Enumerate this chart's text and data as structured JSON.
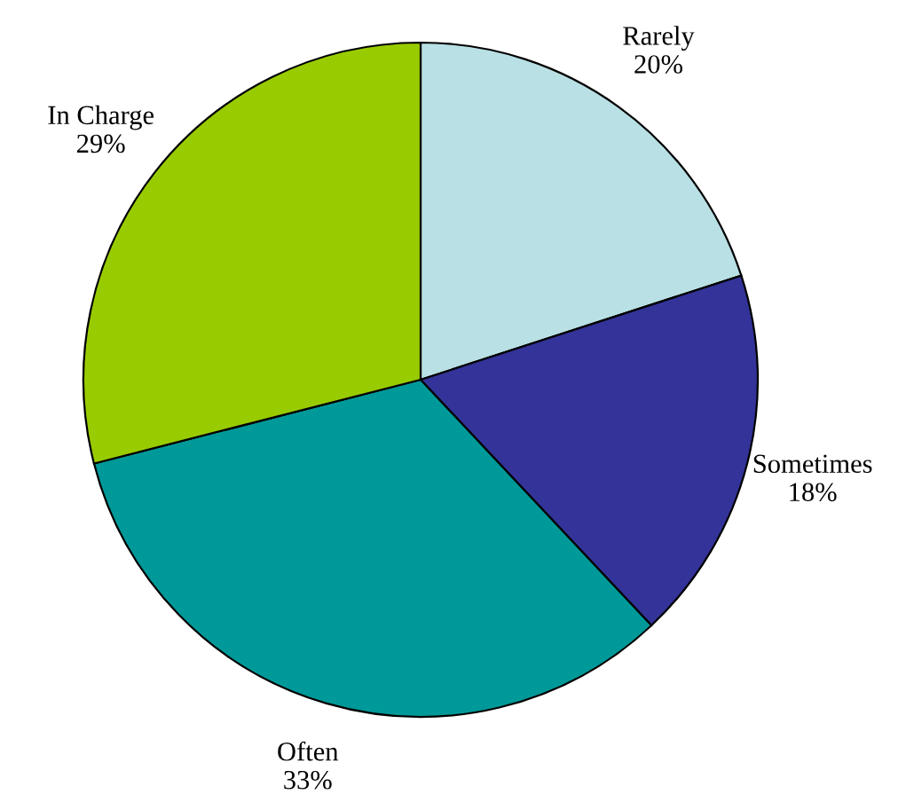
{
  "chart_data": {
    "type": "pie",
    "categories": [
      "Rarely",
      "Sometimes",
      "Often",
      "In Charge"
    ],
    "values": [
      20,
      18,
      33,
      29
    ],
    "value_labels": [
      "20%",
      "18%",
      "33%",
      "29%"
    ],
    "colors": [
      "#b9e0e4",
      "#333399",
      "#009999",
      "#99cc00"
    ]
  }
}
